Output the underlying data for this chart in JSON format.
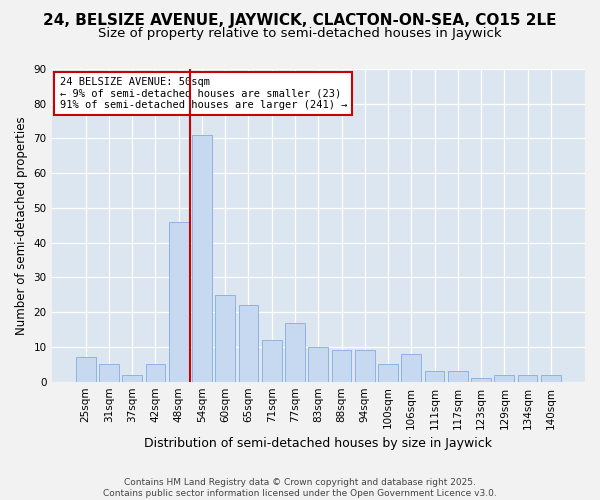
{
  "title": "24, BELSIZE AVENUE, JAYWICK, CLACTON-ON-SEA, CO15 2LE",
  "subtitle": "Size of property relative to semi-detached houses in Jaywick",
  "xlabel": "Distribution of semi-detached houses by size in Jaywick",
  "ylabel": "Number of semi-detached properties",
  "categories": [
    "25sqm",
    "31sqm",
    "37sqm",
    "42sqm",
    "48sqm",
    "54sqm",
    "60sqm",
    "65sqm",
    "71sqm",
    "77sqm",
    "83sqm",
    "88sqm",
    "94sqm",
    "100sqm",
    "106sqm",
    "111sqm",
    "117sqm",
    "123sqm",
    "129sqm",
    "134sqm",
    "140sqm"
  ],
  "values": [
    7,
    5,
    2,
    5,
    46,
    71,
    25,
    22,
    12,
    17,
    10,
    9,
    9,
    5,
    8,
    3,
    3,
    1,
    2,
    2,
    2
  ],
  "bar_color": "#c6d9f1",
  "bar_edge_color": "#8db3e2",
  "plot_bg_color": "#dce6f1",
  "grid_color": "#ffffff",
  "vline_x_pos": 4.5,
  "vline_color": "#cc0000",
  "annotation_text_line1": "24 BELSIZE AVENUE: 50sqm",
  "annotation_text_line2": "← 9% of semi-detached houses are smaller (23)",
  "annotation_text_line3": "91% of semi-detached houses are larger (241) →",
  "annotation_box_facecolor": "#ffffff",
  "annotation_box_edgecolor": "#cc0000",
  "footer_line1": "Contains HM Land Registry data © Crown copyright and database right 2025.",
  "footer_line2": "Contains public sector information licensed under the Open Government Licence v3.0.",
  "ylim": [
    0,
    90
  ],
  "yticks": [
    0,
    10,
    20,
    30,
    40,
    50,
    60,
    70,
    80,
    90
  ],
  "title_fontsize": 11,
  "subtitle_fontsize": 9.5,
  "ylabel_fontsize": 8.5,
  "xlabel_fontsize": 9,
  "tick_fontsize": 7.5,
  "annotation_fontsize": 7.5,
  "footer_fontsize": 6.5
}
